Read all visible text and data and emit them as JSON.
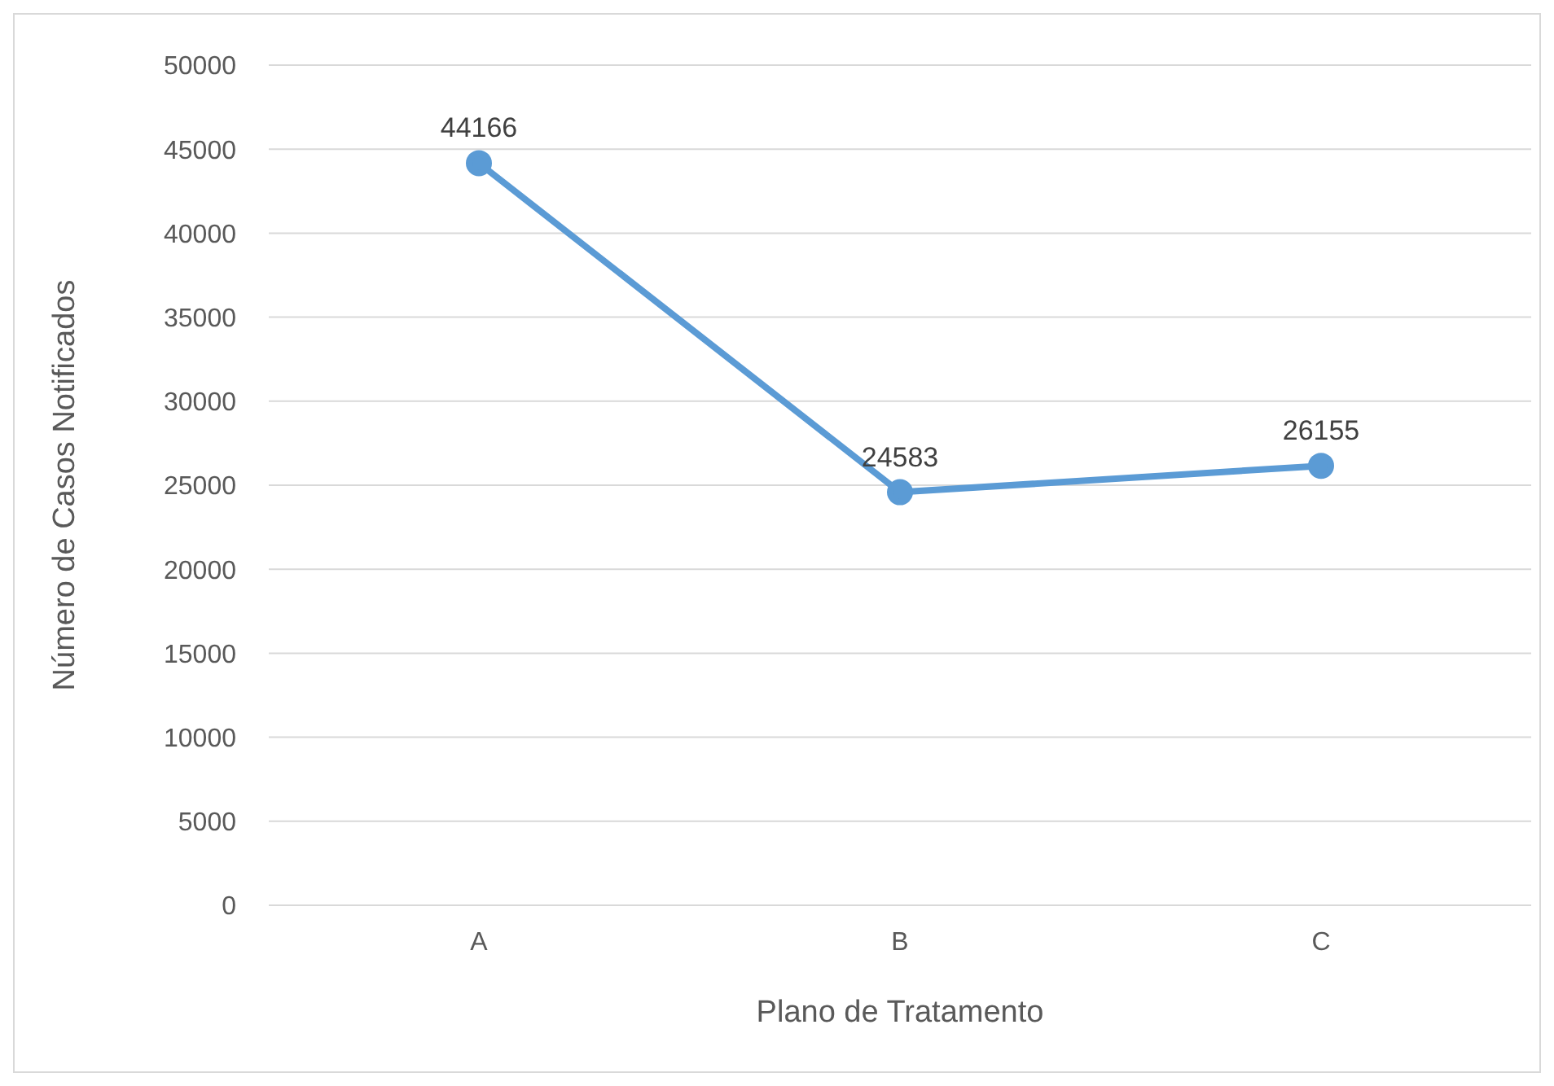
{
  "chart_data": {
    "type": "line",
    "xlabel": "Plano de Tratamento",
    "ylabel": "Número de Casos Notificados",
    "categories": [
      "A",
      "B",
      "C"
    ],
    "series": [
      {
        "color": "#5b9bd5",
        "values": [
          44166,
          24583,
          26155
        ]
      }
    ],
    "ylim": [
      0,
      50000
    ],
    "yticks": [
      0,
      5000,
      10000,
      15000,
      20000,
      25000,
      30000,
      35000,
      40000,
      45000,
      50000
    ],
    "grid": "y",
    "marker": "circle",
    "data_labels": true
  }
}
